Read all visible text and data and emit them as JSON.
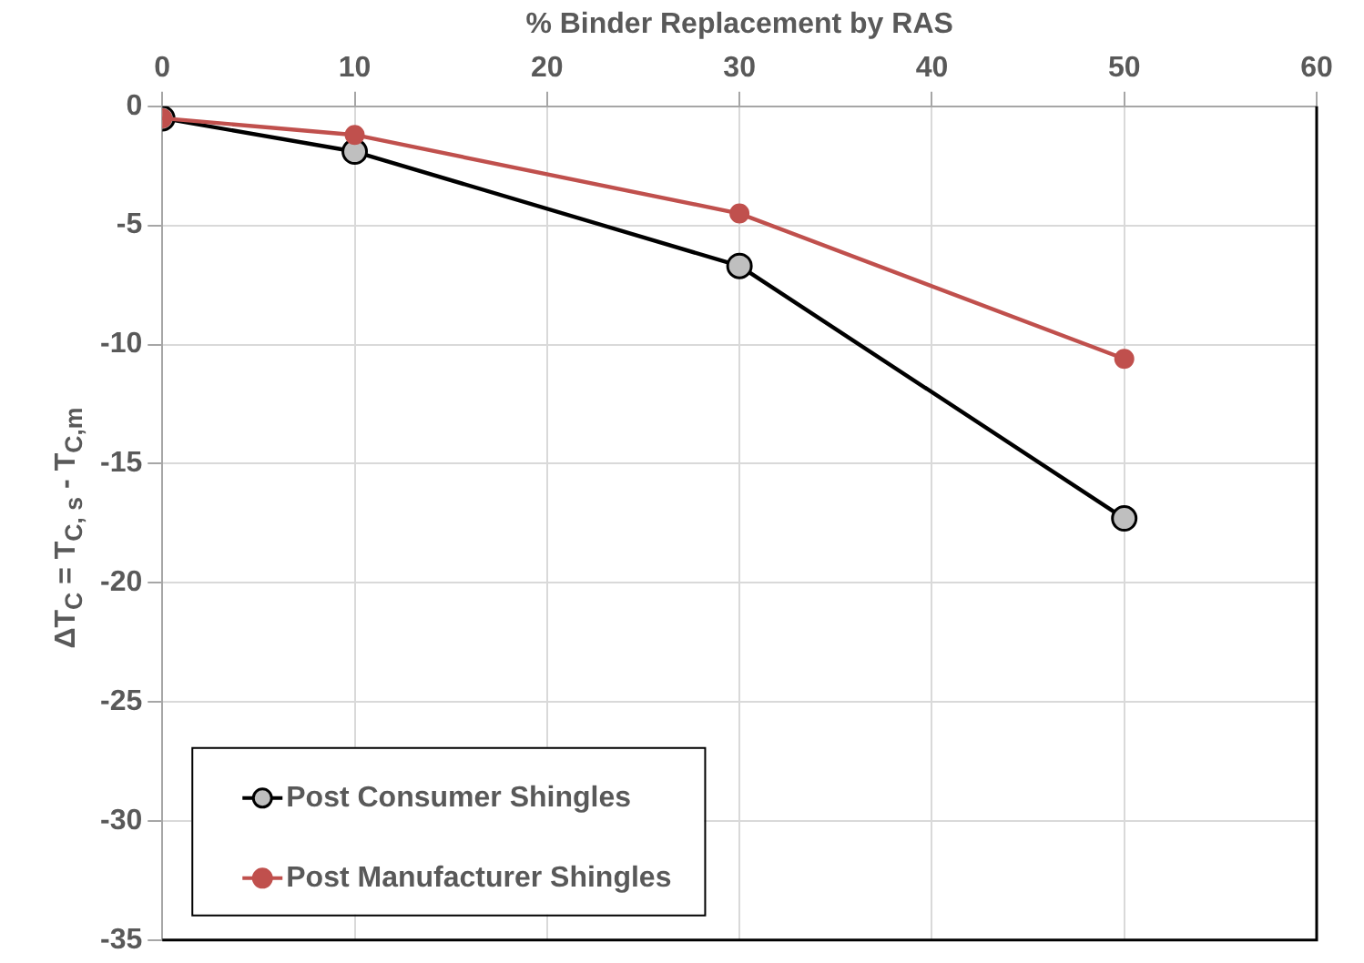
{
  "chart_data": {
    "type": "line",
    "xlabel": "% Binder Replacement by RAS",
    "ylabel": "ΔT$_{C}$ = T$_{C, s}$ - T$_{C,m}$",
    "x": [
      0,
      10,
      30,
      50
    ],
    "series": [
      {
        "name": "Post Consumer Shingles",
        "color": "#000000",
        "values": [
          -0.5,
          -1.9,
          -6.7,
          -17.3
        ]
      },
      {
        "name": "Post Manufacturer Shingles",
        "color": "#c0504d",
        "values": [
          -0.5,
          -1.2,
          -4.5,
          -10.6
        ]
      }
    ],
    "xlim": [
      0,
      60
    ],
    "xticks": [
      0,
      10,
      20,
      30,
      40,
      50,
      60
    ],
    "ylim": [
      -35,
      0
    ],
    "yticks": [
      0,
      -5,
      -10,
      -15,
      -20,
      -25,
      -30,
      -35
    ],
    "grid": true,
    "legend": "bottom left",
    "marker": "circle",
    "line_style": "solid"
  }
}
